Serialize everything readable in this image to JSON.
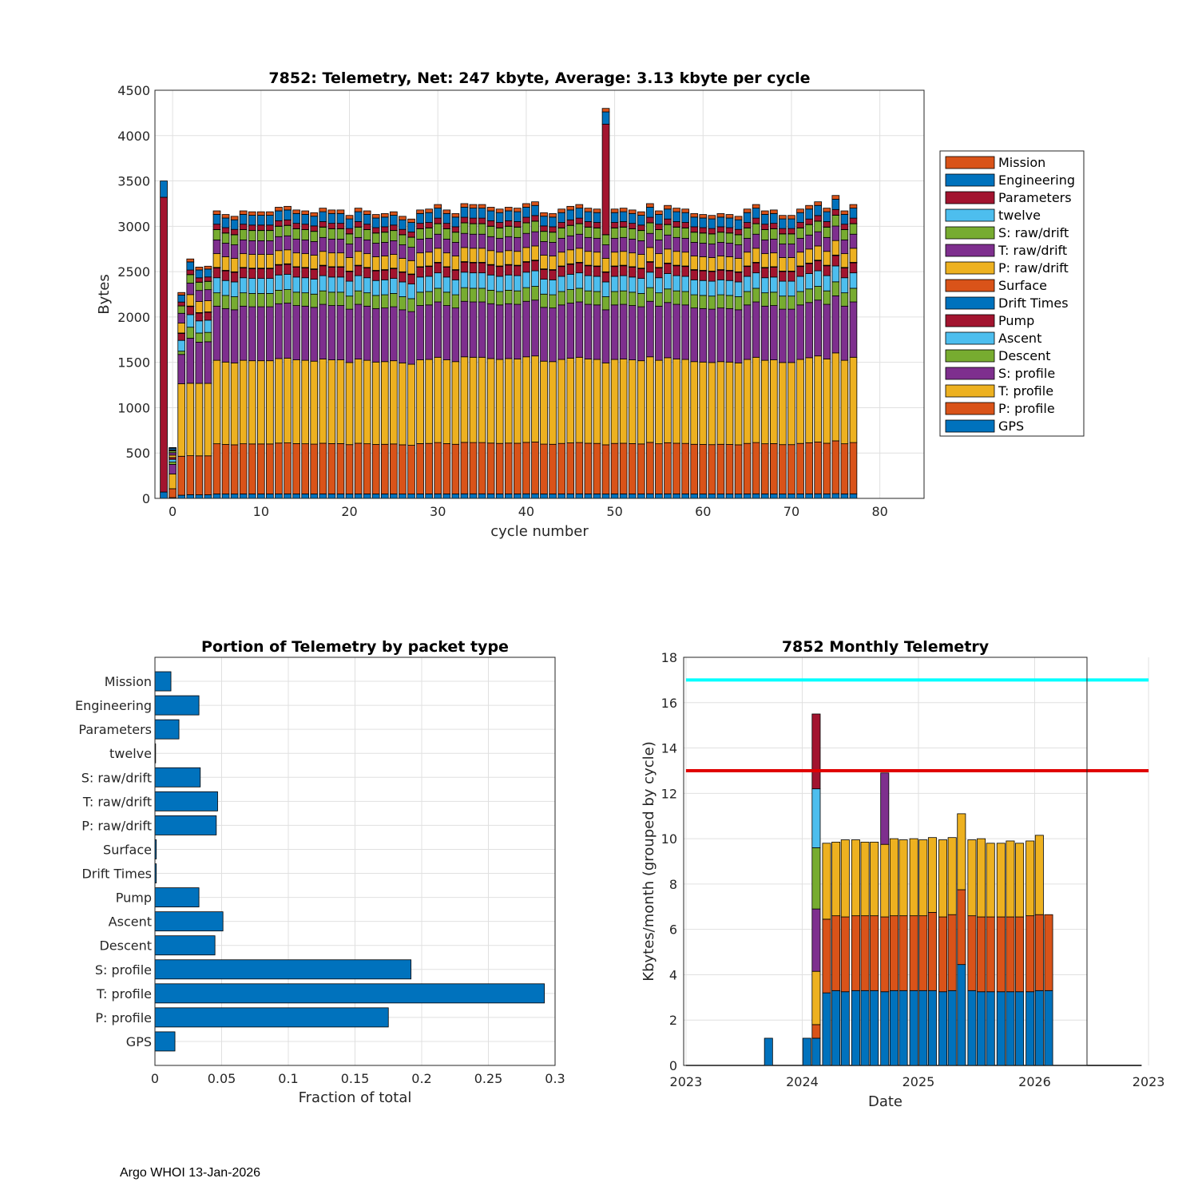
{
  "footer": "Argo WHOI 13-Jan-2026",
  "colors": {
    "blue": "#0072BD",
    "orange": "#D95319",
    "yellow": "#EDB120",
    "purple": "#7E2F8E",
    "green": "#77AC30",
    "cyan": "#4DBEEE",
    "red": "#A2142F",
    "limit_cyan": "#00FFFF",
    "limit_red": "#E00000",
    "grid": "#E0E0E0",
    "axis": "#262626"
  },
  "chart_data": [
    {
      "type": "bar",
      "stacked": true,
      "title": "7852: Telemetry, Net:    247 kbyte,  Average: 3.13 kbyte per cycle",
      "xlabel": "cycle number",
      "ylabel": "Bytes",
      "xlim": [
        -2,
        85
      ],
      "ylim": [
        0,
        4500
      ],
      "xticks": [
        0,
        10,
        20,
        30,
        40,
        50,
        60,
        70,
        80
      ],
      "yticks": [
        0,
        500,
        1000,
        1500,
        2000,
        2500,
        3000,
        3500,
        4000,
        4500
      ],
      "grid": true,
      "legend_position": "right",
      "legend": [
        "Mission",
        "Engineering",
        "Parameters",
        "twelve",
        "S: raw/drift",
        "T: raw/drift",
        "P: raw/drift",
        "Surface",
        "Drift Times",
        "Pump",
        "Ascent",
        "Descent",
        "S: profile",
        "T: profile",
        "P: profile",
        "GPS"
      ],
      "stack_order": [
        "GPS",
        "P: profile",
        "T: profile",
        "S: profile",
        "Descent",
        "Ascent",
        "Pump",
        "Drift Times",
        "Surface",
        "P: raw/drift",
        "T: raw/drift",
        "S: raw/drift",
        "twelve",
        "Parameters",
        "Engineering",
        "Mission"
      ],
      "series_colors": {
        "GPS": "blue",
        "P: profile": "orange",
        "T: profile": "yellow",
        "S: profile": "purple",
        "Descent": "green",
        "Ascent": "cyan",
        "Pump": "red",
        "Drift Times": "blue",
        "Surface": "orange",
        "P: raw/drift": "yellow",
        "T: raw/drift": "purple",
        "S: raw/drift": "green",
        "twelve": "cyan",
        "Parameters": "red",
        "Engineering": "blue",
        "Mission": "orange"
      },
      "cycles": [
        -1,
        0,
        1,
        2,
        3,
        4,
        5,
        6,
        7,
        8,
        9,
        10,
        11,
        12,
        13,
        14,
        15,
        16,
        17,
        18,
        19,
        20,
        21,
        22,
        23,
        24,
        25,
        26,
        27,
        28,
        29,
        30,
        31,
        32,
        33,
        34,
        35,
        36,
        37,
        38,
        39,
        40,
        41,
        42,
        43,
        44,
        45,
        46,
        47,
        48,
        49,
        50,
        51,
        52,
        53,
        54,
        55,
        56,
        57,
        58,
        59,
        60,
        61,
        62,
        63,
        64,
        65,
        66,
        67,
        68,
        69,
        70,
        71,
        72,
        73,
        74,
        75,
        76,
        77
      ],
      "totals": [
        3500,
        560,
        2270,
        2640,
        2550,
        2560,
        3170,
        3130,
        3110,
        3170,
        3160,
        3160,
        3160,
        3210,
        3220,
        3180,
        3170,
        3150,
        3200,
        3180,
        3180,
        3120,
        3200,
        3170,
        3130,
        3140,
        3160,
        3110,
        3080,
        3180,
        3190,
        3240,
        3180,
        3140,
        3250,
        3240,
        3240,
        3210,
        3190,
        3210,
        3200,
        3250,
        3270,
        3150,
        3140,
        3190,
        3220,
        3240,
        3200,
        3190,
        4300,
        3190,
        3200,
        3180,
        3160,
        3250,
        3170,
        3230,
        3200,
        3190,
        3140,
        3130,
        3120,
        3140,
        3130,
        3110,
        3190,
        3240,
        3170,
        3180,
        3120,
        3120,
        3190,
        3230,
        3270,
        3200,
        3340,
        3170,
        3240
      ],
      "note": "Cycles 1..77 share a typical per-packet composition scaled to totals; cycle -1 is dominated by Parameters and Engineering; cycle 49 adds a large Parameters packet.",
      "typical_composition": {
        "GPS": 50,
        "P: profile": 565,
        "T: profile": 940,
        "S: profile": 610,
        "Descent": 150,
        "Ascent": 170,
        "Pump": 110,
        "Drift Times": 3,
        "Surface": 3,
        "P: raw/drift": 155,
        "T: raw/drift": 155,
        "S: raw/drift": 115,
        "twelve": 2,
        "Parameters": 60,
        "Engineering": 110,
        "Mission": 40
      }
    },
    {
      "type": "bar",
      "orientation": "horizontal",
      "title": "Portion of Telemetry by packet type",
      "xlabel": "Fraction of total",
      "xlim": [
        0,
        0.3
      ],
      "xticks": [
        "0",
        "0.05",
        "0.1",
        "0.15",
        "0.2",
        "0.25",
        "0.3"
      ],
      "xtick_values": [
        0,
        0.05,
        0.1,
        0.15,
        0.2,
        0.25,
        0.3
      ],
      "categories": [
        "Mission",
        "Engineering",
        "Parameters",
        "twelve",
        "S: raw/drift",
        "T: raw/drift",
        "P: raw/drift",
        "Surface",
        "Drift Times",
        "Pump",
        "Ascent",
        "Descent",
        "S: profile",
        "T: profile",
        "P: profile",
        "GPS"
      ],
      "values": [
        0.012,
        0.033,
        0.018,
        0.0005,
        0.034,
        0.047,
        0.046,
        0.001,
        0.001,
        0.033,
        0.051,
        0.045,
        0.192,
        0.292,
        0.175,
        0.015
      ],
      "color": "blue",
      "grid": true
    },
    {
      "type": "bar",
      "stacked": true,
      "title": "7852 Monthly Telemetry",
      "xlabel": "Date",
      "ylabel": "Kbytes/month (grouped by cycle)",
      "xlim": [
        2022.98,
        2026.45
      ],
      "ylim": [
        0,
        18
      ],
      "yticks": [
        0,
        2,
        4,
        6,
        8,
        10,
        12,
        14,
        16,
        18
      ],
      "xtick_values": [
        2023,
        2024,
        2025,
        2026,
        2026.98
      ],
      "xtick_labels": [
        "2023",
        "2024",
        "2025",
        "2026",
        "2023"
      ],
      "grid": true,
      "limit_lines": [
        {
          "y": 17,
          "color": "limit_cyan"
        },
        {
          "y": 13,
          "color": "limit_red"
        }
      ],
      "bar_width_years": 0.07,
      "series_order": [
        "blue",
        "orange",
        "yellow",
        "purple",
        "green",
        "cyan",
        "red"
      ],
      "bars": [
        {
          "x": 2023.71,
          "v": [
            1.2,
            0,
            0,
            0,
            0,
            0,
            0
          ]
        },
        {
          "x": 2024.04,
          "v": [
            1.2,
            0,
            0,
            0,
            0,
            0,
            0
          ]
        },
        {
          "x": 2024.12,
          "v": [
            1.2,
            0.6,
            2.35,
            2.75,
            2.7,
            2.6,
            3.3
          ]
        },
        {
          "x": 2024.21,
          "v": [
            3.2,
            3.25,
            3.35,
            0,
            0,
            0,
            0
          ]
        },
        {
          "x": 2024.29,
          "v": [
            3.3,
            3.3,
            3.25,
            0,
            0,
            0,
            0
          ]
        },
        {
          "x": 2024.37,
          "v": [
            3.25,
            3.3,
            3.4,
            0,
            0,
            0,
            0
          ]
        },
        {
          "x": 2024.46,
          "v": [
            3.3,
            3.3,
            3.35,
            0,
            0,
            0,
            0
          ]
        },
        {
          "x": 2024.54,
          "v": [
            3.3,
            3.3,
            3.25,
            0,
            0,
            0,
            0
          ]
        },
        {
          "x": 2024.62,
          "v": [
            3.3,
            3.3,
            3.25,
            0,
            0,
            0,
            0
          ]
        },
        {
          "x": 2024.71,
          "v": [
            3.25,
            3.3,
            3.2,
            3.15,
            0,
            0,
            0
          ]
        },
        {
          "x": 2024.79,
          "v": [
            3.3,
            3.3,
            3.4,
            0,
            0,
            0,
            0
          ]
        },
        {
          "x": 2024.87,
          "v": [
            3.3,
            3.3,
            3.35,
            0,
            0,
            0,
            0
          ]
        },
        {
          "x": 2024.96,
          "v": [
            3.3,
            3.3,
            3.4,
            0,
            0,
            0,
            0
          ]
        },
        {
          "x": 2025.04,
          "v": [
            3.3,
            3.3,
            3.35,
            0,
            0,
            0,
            0
          ]
        },
        {
          "x": 2025.12,
          "v": [
            3.3,
            3.45,
            3.3,
            0,
            0,
            0,
            0
          ]
        },
        {
          "x": 2025.21,
          "v": [
            3.25,
            3.3,
            3.4,
            0,
            0,
            0,
            0
          ]
        },
        {
          "x": 2025.29,
          "v": [
            3.3,
            3.35,
            3.4,
            0,
            0,
            0,
            0
          ]
        },
        {
          "x": 2025.37,
          "v": [
            4.45,
            3.3,
            3.35,
            0,
            0,
            0,
            0
          ]
        },
        {
          "x": 2025.46,
          "v": [
            3.3,
            3.3,
            3.35,
            0,
            0,
            0,
            0
          ]
        },
        {
          "x": 2025.54,
          "v": [
            3.25,
            3.3,
            3.45,
            0,
            0,
            0,
            0
          ]
        },
        {
          "x": 2025.62,
          "v": [
            3.25,
            3.3,
            3.25,
            0,
            0,
            0,
            0
          ]
        },
        {
          "x": 2025.71,
          "v": [
            3.25,
            3.3,
            3.25,
            0,
            0,
            0,
            0
          ]
        },
        {
          "x": 2025.79,
          "v": [
            3.25,
            3.3,
            3.35,
            0,
            0,
            0,
            0
          ]
        },
        {
          "x": 2025.87,
          "v": [
            3.25,
            3.3,
            3.25,
            0,
            0,
            0,
            0
          ]
        },
        {
          "x": 2025.96,
          "v": [
            3.25,
            3.35,
            3.3,
            0,
            0,
            0,
            0
          ]
        },
        {
          "x": 2026.04,
          "v": [
            3.3,
            3.35,
            3.5,
            0,
            0,
            0,
            0
          ]
        },
        {
          "x": 2026.12,
          "v": [
            3.3,
            3.35,
            0,
            0,
            0,
            0,
            0
          ]
        }
      ]
    }
  ]
}
